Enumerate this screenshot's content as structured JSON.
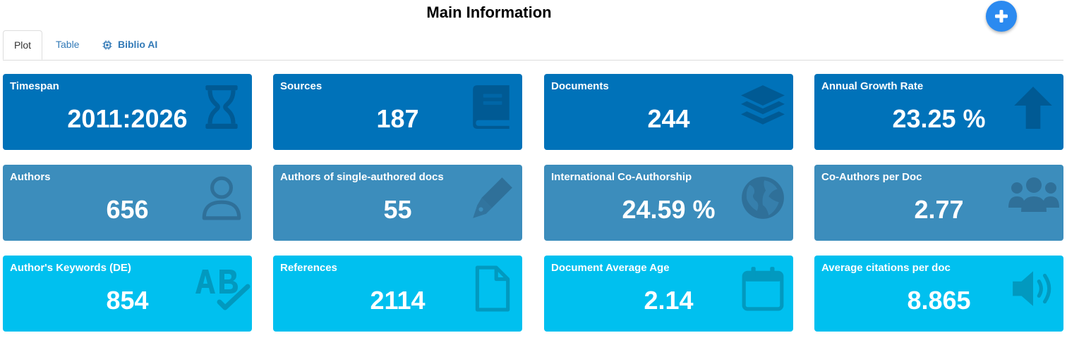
{
  "header": {
    "title": "Main Information",
    "add_button": "plus-icon"
  },
  "tabs": [
    {
      "label": "Plot",
      "active": true
    },
    {
      "label": "Table",
      "active": false
    },
    {
      "label": "Biblio AI",
      "active": false,
      "icon": "chip-icon"
    }
  ],
  "colors": {
    "row1": "#0072b9",
    "row2": "#3c8dbc",
    "row3": "#00c0ef",
    "accent": "#2b8af0"
  },
  "boxes": [
    {
      "label": "Timespan",
      "value": "2011:2026",
      "icon": "hourglass-icon"
    },
    {
      "label": "Sources",
      "value": "187",
      "icon": "book-icon"
    },
    {
      "label": "Documents",
      "value": "244",
      "icon": "layers-icon"
    },
    {
      "label": "Annual Growth Rate",
      "value": "23.25 %",
      "icon": "arrow-up-icon"
    },
    {
      "label": "Authors",
      "value": "656",
      "icon": "user-icon"
    },
    {
      "label": "Authors of single-authored docs",
      "value": "55",
      "icon": "pen-icon"
    },
    {
      "label": "International Co-Authorship",
      "value": "24.59 %",
      "icon": "globe-icon"
    },
    {
      "label": "Co-Authors per Doc",
      "value": "2.77",
      "icon": "users-icon"
    },
    {
      "label": "Author's Keywords (DE)",
      "value": "854",
      "icon": "spellcheck-icon"
    },
    {
      "label": "References",
      "value": "2114",
      "icon": "file-icon"
    },
    {
      "label": "Document Average Age",
      "value": "2.14",
      "icon": "calendar-icon"
    },
    {
      "label": "Average citations per doc",
      "value": "8.865",
      "icon": "volume-icon"
    }
  ]
}
